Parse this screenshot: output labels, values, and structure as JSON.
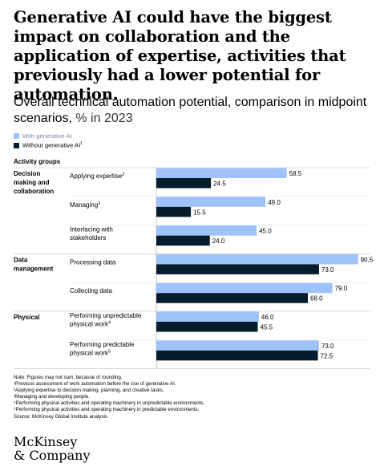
{
  "headline": "Generative AI could have the biggest impact on collaboration and the application of expertise, activities that previously had a lower potential for automation.",
  "subtitle": "Overall technical automation potential, comparison in midpoint scenarios,",
  "subtitle_unit": "% in 2023",
  "colors": {
    "with_gen_ai": "#9ec3fb",
    "without_gen_ai": "#051c2c"
  },
  "chart_data": {
    "type": "bar",
    "orientation": "horizontal",
    "group_header": "Activity groups",
    "groups": [
      {
        "label": "Decision making and collaboration",
        "lines": [
          "Decision",
          "making and",
          "collaboration"
        ]
      },
      {
        "label": "Data management",
        "lines": [
          "Data",
          "management"
        ]
      },
      {
        "label": "Physical",
        "lines": [
          "Physical"
        ]
      }
    ],
    "categories": [
      {
        "group": 0,
        "lines": [
          "Applying expertise"
        ],
        "sup": "2"
      },
      {
        "group": 0,
        "lines": [
          "Managing"
        ],
        "sup": "3"
      },
      {
        "group": 0,
        "lines": [
          "Interfacing with",
          "stakeholders"
        ],
        "sup": ""
      },
      {
        "group": 1,
        "lines": [
          "Processing data"
        ],
        "sup": ""
      },
      {
        "group": 1,
        "lines": [
          "Collecting data"
        ],
        "sup": ""
      },
      {
        "group": 2,
        "lines": [
          "Performing unpredictable",
          "physical work"
        ],
        "sup": "4"
      },
      {
        "group": 2,
        "lines": [
          "Performing predictable",
          "physical work"
        ],
        "sup": "5"
      }
    ],
    "series": [
      {
        "name": "With generative AI",
        "sup": "",
        "color": "#9ec3fb",
        "values": [
          58.5,
          49.0,
          45.0,
          90.5,
          79.0,
          46.0,
          73.0
        ],
        "labels": [
          "58.5",
          "49.0",
          "45.0",
          "90.5",
          "79.0",
          "46.0",
          "73.0"
        ]
      },
      {
        "name": "Without generative AI",
        "sup": "1",
        "color": "#051c2c",
        "values": [
          24.5,
          15.5,
          24.0,
          73.0,
          68.0,
          45.5,
          72.5
        ],
        "labels": [
          "24.5",
          "15.5",
          "24.0",
          "73.0",
          "68.0",
          "45.5",
          "72.5"
        ]
      }
    ],
    "xlim": [
      0,
      100
    ]
  },
  "footnotes": [
    "Note: Figures may not sum, because of rounding.",
    "¹Previous assessment of work automation before the rise of generative AI.",
    "²Applying expertise to decision making, planning, and creative tasks.",
    "³Managing and developing people.",
    "⁴Performing physical activities and operating machinery in unpredictable environments.",
    "⁵Performing physical activities and operating machinery in predictable environments.",
    "Source: McKinsey Global Institute analysis"
  ],
  "logo": {
    "line1": "McKinsey",
    "line2": "& Company"
  }
}
